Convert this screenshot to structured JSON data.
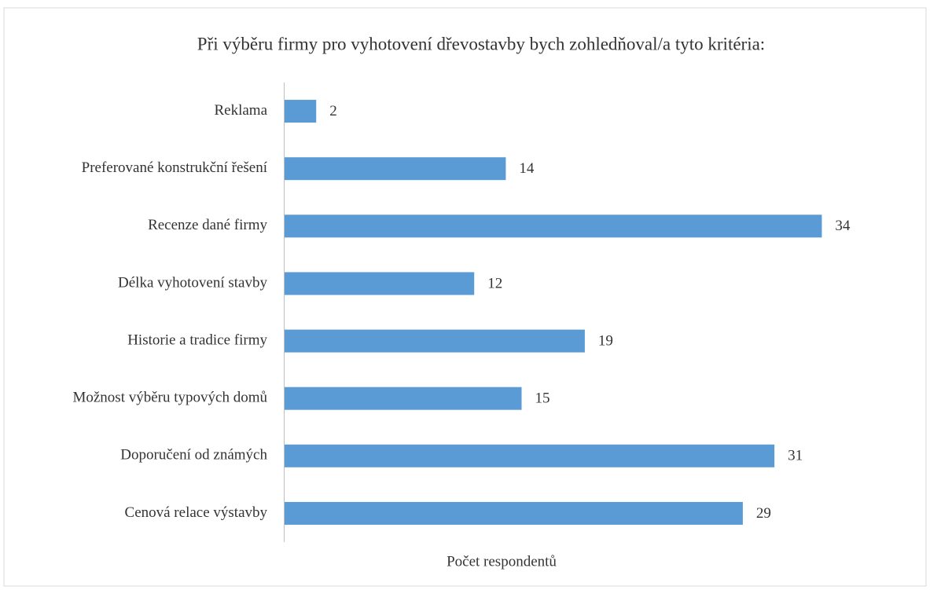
{
  "chart_data": {
    "type": "bar",
    "orientation": "horizontal",
    "title": "Při výběru firmy pro vyhotovení dřevostavby bych zohledňoval/a tyto kritéria:",
    "xlabel": "Počet respondentů",
    "categories": [
      "Reklama",
      "Preferované konstrukční řešení",
      "Recenze dané firmy",
      "Délka vyhotovení stavby",
      "Historie a tradice firmy",
      "Možnost výběru typových domů",
      "Doporučení od známých",
      "Cenová relace výstavby"
    ],
    "values": [
      2,
      14,
      34,
      12,
      19,
      15,
      31,
      29
    ],
    "color": "#5b9bd5",
    "xlim": [
      0,
      40
    ]
  }
}
